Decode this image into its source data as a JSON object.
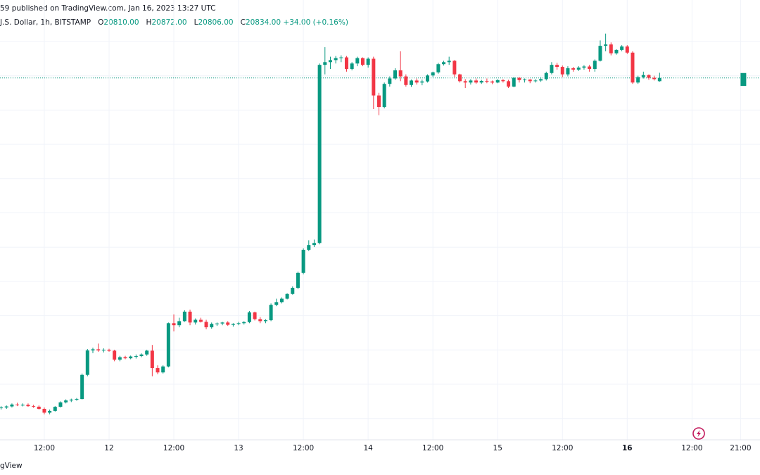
{
  "header": {
    "published_line": "59 published on TradingView.com, Jan 16, 2023 13:27 UTC",
    "symbol_line": "J.S. Dollar, 1h, BITSTAMP",
    "ohlc": [
      {
        "label": "O",
        "value": "20810.00"
      },
      {
        "label": "H",
        "value": "20872.00"
      },
      {
        "label": "L",
        "value": "20806.00"
      },
      {
        "label": "C",
        "value": "20834.00"
      }
    ],
    "change": "+34.00 (+0.16%)"
  },
  "footer": {
    "brand": "gView"
  },
  "icons": {
    "snapshot": "lightning-bolt-icon"
  },
  "colors": {
    "up": "#089981",
    "down": "#f23645",
    "grid": "#f0f3fa",
    "last_price_line": "#089981"
  },
  "chart_data": {
    "type": "candlestick",
    "interval": "1h",
    "xlabels": [
      {
        "label": "12:00",
        "bar": -15
      },
      {
        "label": "12",
        "bar": -3
      },
      {
        "label": "12:00",
        "bar": 9
      },
      {
        "label": "13",
        "bar": 21
      },
      {
        "label": "12:00",
        "bar": 33
      },
      {
        "label": "14",
        "bar": 45
      },
      {
        "label": "12:00",
        "bar": 57
      },
      {
        "label": "15",
        "bar": 69
      },
      {
        "label": "12:00",
        "bar": 81
      },
      {
        "label": "16",
        "bar": 93
      },
      {
        "label": "12:00",
        "bar": 105
      },
      {
        "label": "21:00",
        "bar": 114
      }
    ],
    "last_price": 20834,
    "y_range": [
      18250,
      21200
    ],
    "start_bar": -23,
    "candles": [
      [
        18405,
        18420,
        18395,
        18410
      ],
      [
        18410,
        18425,
        18400,
        18418
      ],
      [
        18418,
        18440,
        18410,
        18432
      ],
      [
        18432,
        18445,
        18420,
        18428
      ],
      [
        18428,
        18440,
        18418,
        18430
      ],
      [
        18430,
        18440,
        18415,
        18420
      ],
      [
        18420,
        18430,
        18408,
        18416
      ],
      [
        18416,
        18425,
        18395,
        18400
      ],
      [
        18400,
        18410,
        18360,
        18372
      ],
      [
        18372,
        18395,
        18360,
        18385
      ],
      [
        18385,
        18420,
        18380,
        18415
      ],
      [
        18415,
        18455,
        18410,
        18448
      ],
      [
        18448,
        18470,
        18440,
        18462
      ],
      [
        18462,
        18475,
        18450,
        18468
      ],
      [
        18468,
        18480,
        18460,
        18472
      ],
      [
        18472,
        18660,
        18470,
        18650
      ],
      [
        18650,
        18840,
        18640,
        18830
      ],
      [
        18830,
        18850,
        18810,
        18838
      ],
      [
        18838,
        18880,
        18820,
        18830
      ],
      [
        18830,
        18845,
        18815,
        18835
      ],
      [
        18835,
        18842,
        18820,
        18828
      ],
      [
        18828,
        18835,
        18750,
        18762
      ],
      [
        18762,
        18790,
        18750,
        18780
      ],
      [
        18780,
        18790,
        18765,
        18772
      ],
      [
        18772,
        18792,
        18765,
        18785
      ],
      [
        18785,
        18800,
        18770,
        18788
      ],
      [
        18788,
        18808,
        18780,
        18800
      ],
      [
        18800,
        18835,
        18790,
        18828
      ],
      [
        18828,
        18870,
        18640,
        18700
      ],
      [
        18700,
        18720,
        18655,
        18668
      ],
      [
        18668,
        18720,
        18660,
        18712
      ],
      [
        18712,
        19035,
        18705,
        19030
      ],
      [
        19030,
        19095,
        18970,
        19015
      ],
      [
        19015,
        19070,
        19000,
        19045
      ],
      [
        19045,
        19125,
        19040,
        19115
      ],
      [
        19115,
        19130,
        19015,
        19035
      ],
      [
        19035,
        19065,
        19020,
        19055
      ],
      [
        19055,
        19070,
        19035,
        19040
      ],
      [
        19040,
        19055,
        18985,
        19000
      ],
      [
        19000,
        19035,
        18990,
        19025
      ],
      [
        19025,
        19035,
        19010,
        19028
      ],
      [
        19028,
        19040,
        19015,
        19035
      ],
      [
        19035,
        19045,
        19010,
        19018
      ],
      [
        19018,
        19030,
        19005,
        19025
      ],
      [
        19025,
        19040,
        19015,
        19030
      ],
      [
        19030,
        19045,
        19020,
        19038
      ],
      [
        19038,
        19120,
        19030,
        19110
      ],
      [
        19110,
        19115,
        19050,
        19060
      ],
      [
        19060,
        19075,
        19030,
        19045
      ],
      [
        19045,
        19060,
        19030,
        19052
      ],
      [
        19052,
        19175,
        19045,
        19165
      ],
      [
        19165,
        19210,
        19155,
        19185
      ],
      [
        19185,
        19220,
        19175,
        19210
      ],
      [
        19210,
        19250,
        19205,
        19245
      ],
      [
        19245,
        19300,
        19240,
        19290
      ],
      [
        19290,
        19410,
        19280,
        19400
      ],
      [
        19400,
        19580,
        19390,
        19570
      ],
      [
        19570,
        19640,
        19560,
        19605
      ],
      [
        19605,
        19645,
        19590,
        19620
      ],
      [
        19620,
        20940,
        19610,
        20930
      ],
      [
        20930,
        21060,
        20860,
        20950
      ],
      [
        20950,
        20990,
        20900,
        20965
      ],
      [
        20965,
        20995,
        20940,
        20980
      ],
      [
        20980,
        21000,
        20950,
        20985
      ],
      [
        20985,
        20995,
        20880,
        20900
      ],
      [
        20900,
        20950,
        20890,
        20940
      ],
      [
        20940,
        20990,
        20920,
        20980
      ],
      [
        20980,
        20985,
        20920,
        20930
      ],
      [
        20930,
        20985,
        20910,
        20975
      ],
      [
        20975,
        20990,
        20605,
        20705
      ],
      [
        20705,
        20725,
        20560,
        20620
      ],
      [
        20620,
        20800,
        20610,
        20790
      ],
      [
        20790,
        20845,
        20770,
        20830
      ],
      [
        20830,
        20905,
        20820,
        20890
      ],
      [
        20890,
        21030,
        20810,
        20845
      ],
      [
        20845,
        20860,
        20770,
        20782
      ],
      [
        20782,
        20822,
        20768,
        20815
      ],
      [
        20815,
        20830,
        20785,
        20800
      ],
      [
        20800,
        20822,
        20780,
        20808
      ],
      [
        20808,
        20860,
        20800,
        20852
      ],
      [
        20852,
        20880,
        20840,
        20875
      ],
      [
        20875,
        20945,
        20865,
        20935
      ],
      [
        20935,
        20960,
        20925,
        20950
      ],
      [
        20950,
        20990,
        20930,
        20960
      ],
      [
        20960,
        20965,
        20840,
        20860
      ],
      [
        20860,
        20865,
        20800,
        20810
      ],
      [
        20810,
        20825,
        20760,
        20800
      ],
      [
        20800,
        20825,
        20785,
        20815
      ],
      [
        20815,
        20830,
        20790,
        20800
      ],
      [
        20800,
        20820,
        20790,
        20812
      ],
      [
        20812,
        20830,
        20795,
        20808
      ],
      [
        20808,
        20815,
        20788,
        20800
      ],
      [
        20800,
        20825,
        20795,
        20818
      ],
      [
        20818,
        20825,
        20800,
        20810
      ],
      [
        20810,
        20820,
        20760,
        20770
      ],
      [
        20770,
        20840,
        20765,
        20835
      ],
      [
        20835,
        20840,
        20800,
        20818
      ],
      [
        20818,
        20830,
        20800,
        20822
      ],
      [
        20822,
        20825,
        20795,
        20810
      ],
      [
        20810,
        20825,
        20800,
        20815
      ],
      [
        20815,
        20840,
        20805,
        20825
      ],
      [
        20825,
        20880,
        20815,
        20870
      ],
      [
        20870,
        20950,
        20860,
        20930
      ],
      [
        20930,
        20945,
        20895,
        20915
      ],
      [
        20915,
        20925,
        20840,
        20860
      ],
      [
        20860,
        20920,
        20845,
        20905
      ],
      [
        20905,
        20915,
        20880,
        20895
      ],
      [
        20895,
        20920,
        20885,
        20910
      ],
      [
        20910,
        20928,
        20895,
        20918
      ],
      [
        20918,
        20930,
        20880,
        20900
      ],
      [
        20900,
        20970,
        20880,
        20960
      ],
      [
        20960,
        21110,
        20955,
        21070
      ],
      [
        21070,
        21160,
        21030,
        21080
      ],
      [
        21080,
        21095,
        21000,
        21015
      ],
      [
        21015,
        21045,
        21005,
        21040
      ],
      [
        21040,
        21075,
        21030,
        21065
      ],
      [
        21065,
        21075,
        21010,
        21020
      ],
      [
        21020,
        21030,
        20790,
        20800
      ],
      [
        20800,
        20850,
        20790,
        20840
      ],
      [
        20840,
        20880,
        20830,
        20855
      ],
      [
        20855,
        20860,
        20820,
        20835
      ],
      [
        20835,
        20850,
        20815,
        20825
      ],
      [
        20810,
        20872,
        20806,
        20834
      ]
    ],
    "live_candle": {
      "bar": 114,
      "open": 20775,
      "close": 20870
    }
  }
}
